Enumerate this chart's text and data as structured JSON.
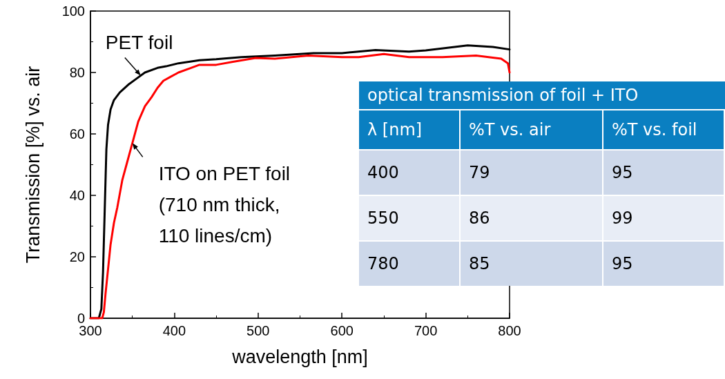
{
  "chart_data": [
    {
      "type": "line",
      "xlabel": "wavelength [nm]",
      "ylabel": "Transmission [%] vs. air",
      "xlim": [
        300,
        800
      ],
      "xticks": [
        300,
        400,
        500,
        600,
        700,
        800
      ],
      "ylim": [
        0,
        100
      ],
      "yticks": [
        0,
        20,
        40,
        60,
        80,
        100
      ],
      "grid": false,
      "marker": "none",
      "line_style": "solid",
      "series": [
        {
          "color": "#000000",
          "x": [
            300,
            310,
            313,
            315,
            317,
            319,
            321,
            324,
            328,
            335,
            345,
            355,
            365,
            380,
            390,
            405,
            430,
            450,
            480,
            520,
            566,
            600,
            640,
            680,
            700,
            750,
            780,
            800
          ],
          "values": [
            0,
            0,
            3,
            15,
            35,
            55,
            63,
            68,
            71,
            73.5,
            76,
            78,
            80,
            81.5,
            82,
            83,
            84,
            84.3,
            85,
            85.5,
            86.3,
            86.3,
            87.3,
            86.8,
            87.2,
            88.8,
            88.3,
            87.5
          ]
        },
        {
          "color": "#ff0000",
          "x": [
            300,
            314,
            316,
            318,
            321,
            324,
            328,
            332,
            338,
            343,
            350,
            357,
            365,
            373,
            380,
            387,
            395,
            405,
            420,
            430,
            450,
            470,
            497,
            520,
            560,
            600,
            620,
            650,
            680,
            720,
            760,
            790,
            798,
            800
          ],
          "values": [
            0,
            0,
            2,
            8,
            16,
            24,
            31,
            36,
            45,
            50,
            57,
            64,
            69,
            72,
            75,
            77.3,
            78.5,
            80,
            81.5,
            82.5,
            82.5,
            83.5,
            84.7,
            84.5,
            85.5,
            85,
            85,
            86,
            85,
            85,
            85.5,
            84.5,
            83,
            80
          ]
        }
      ],
      "annotations": [
        {
          "text": "PET foil",
          "x": 360,
          "y": 79
        },
        {
          "text": "ITO on PET foil\n(710 nm thick,\n110 lines/cm)",
          "x": 350,
          "y": 57
        }
      ]
    },
    {
      "type": "other",
      "title": "optical transmission of foil + ITO",
      "categories": [
        "λ [nm]",
        "%T vs. air",
        "%T vs. foil"
      ],
      "annotations": [
        "400",
        "79",
        "95",
        "550",
        "86",
        "99",
        "780",
        "85",
        "95"
      ]
    }
  ]
}
